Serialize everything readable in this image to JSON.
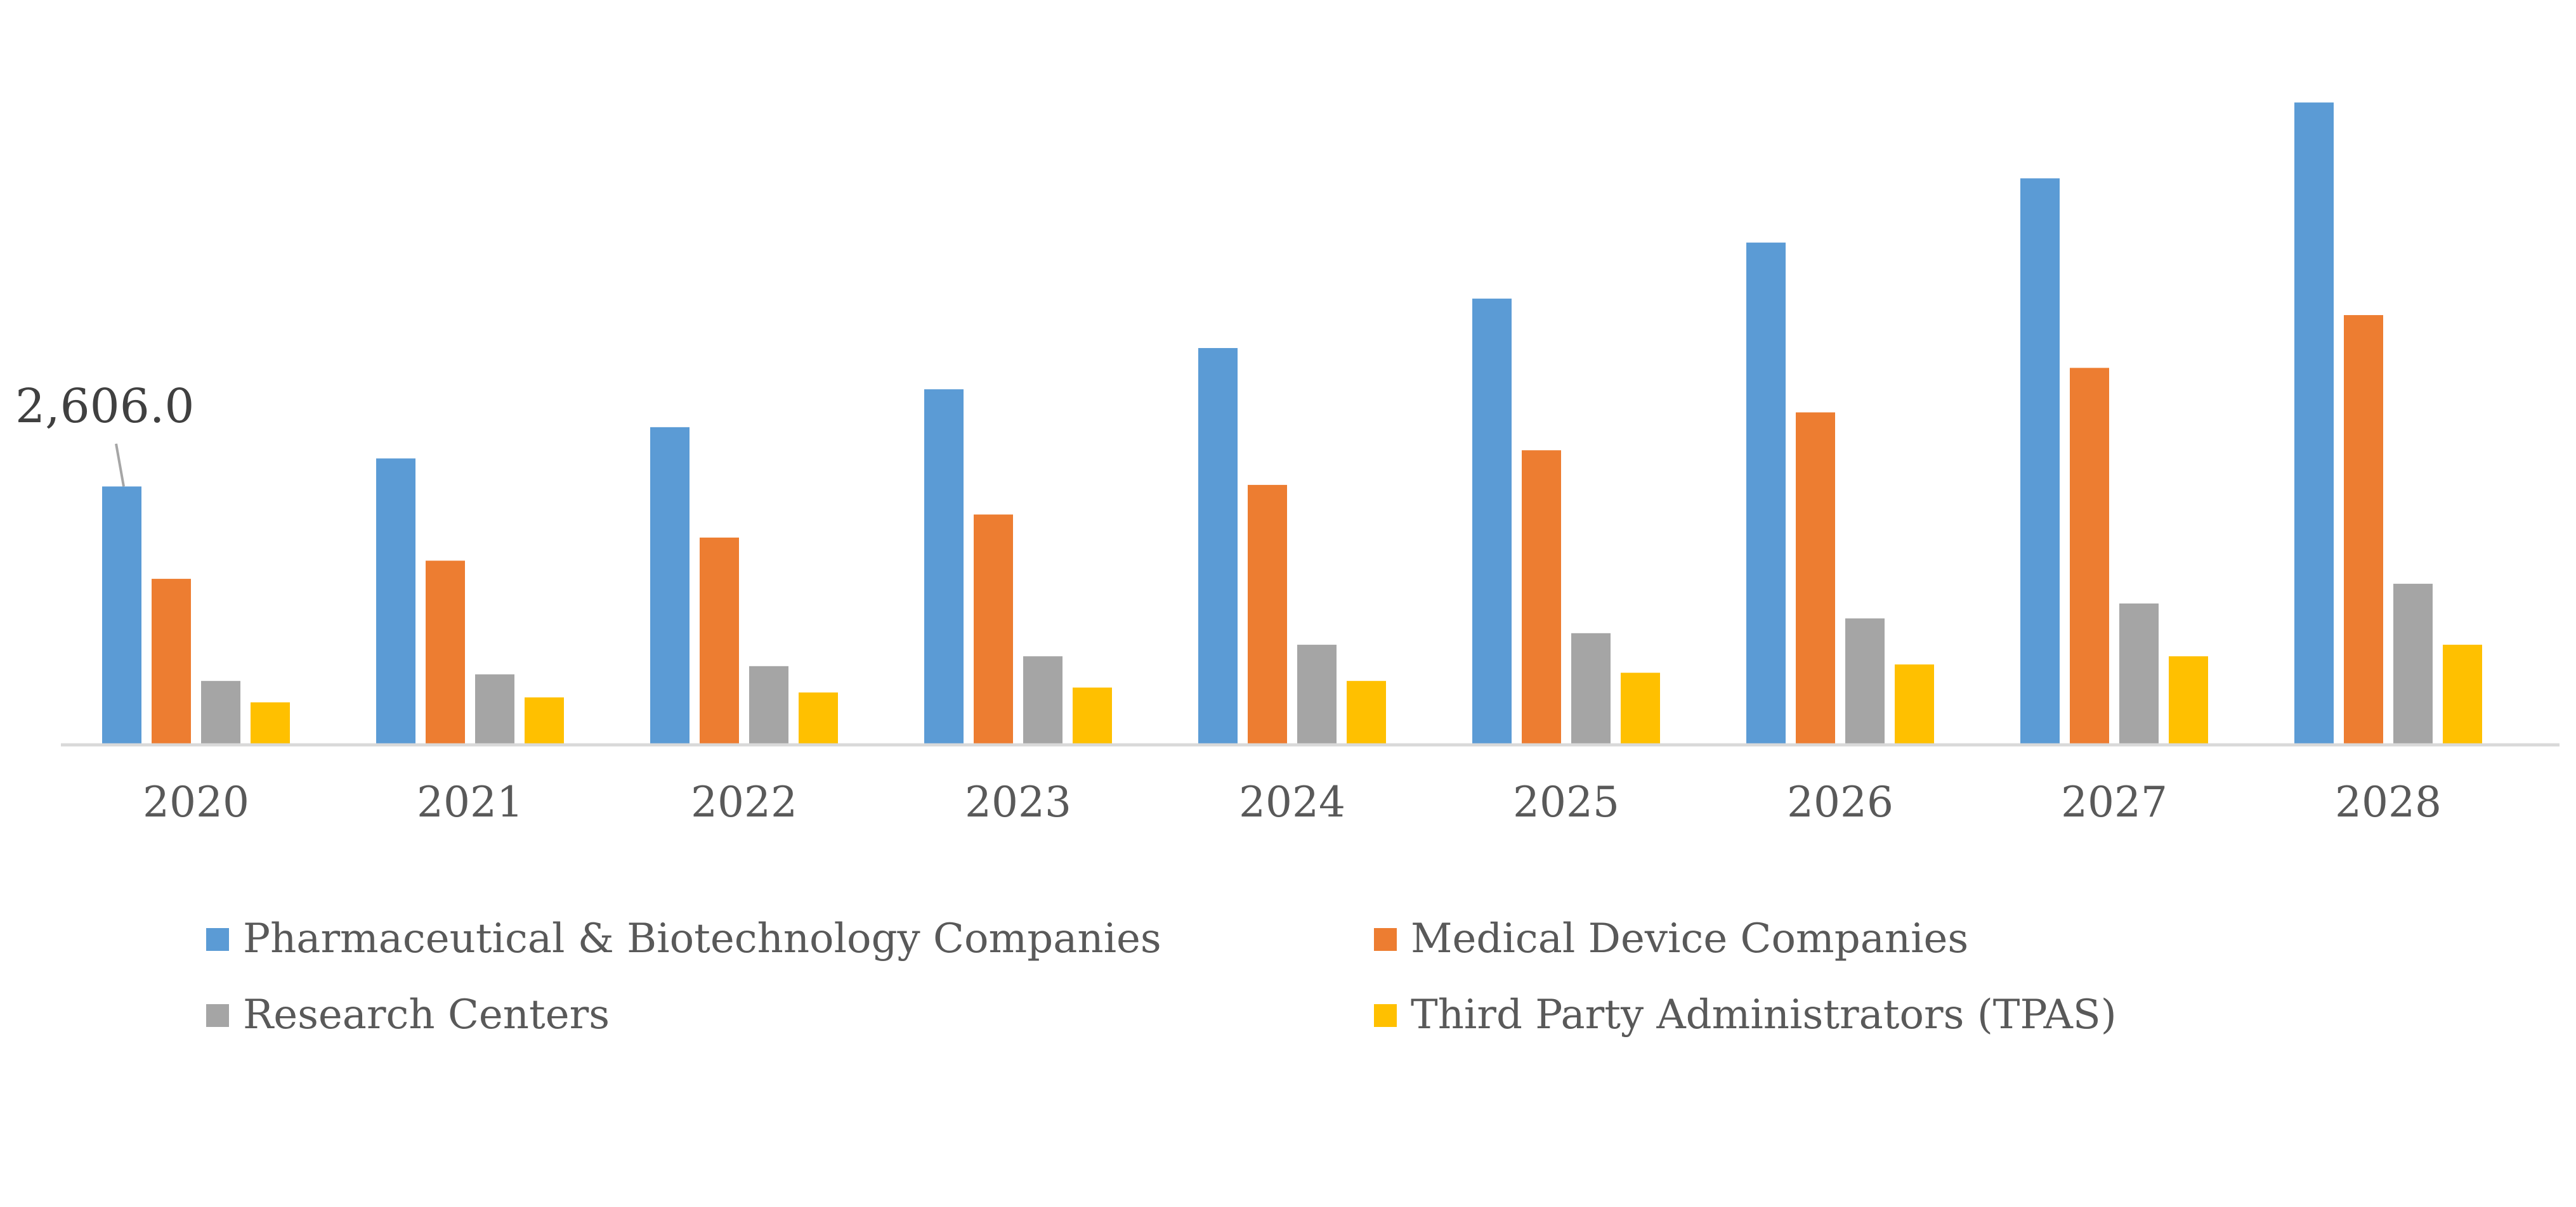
{
  "chart_data": {
    "type": "bar",
    "title": "",
    "xlabel": "",
    "ylabel": "",
    "categories": [
      "2020",
      "2021",
      "2022",
      "2023",
      "2024",
      "2025",
      "2026",
      "2027",
      "2028"
    ],
    "series": [
      {
        "name": "Pharmaceutical & Biotechnology Companies",
        "color": "#5B9BD5",
        "values": [
          2606.0,
          2890,
          3207,
          3591,
          4009,
          4510,
          5078,
          5729,
          6498
        ]
      },
      {
        "name": "Medical Device Companies",
        "color": "#ED7D31",
        "values": [
          1670,
          1854,
          2088,
          2322,
          2622,
          2973,
          3357,
          3808,
          4343
        ]
      },
      {
        "name": "Research Centers",
        "color": "#A5A5A5",
        "values": [
          635,
          702,
          785,
          885,
          1002,
          1119,
          1269,
          1420,
          1620
        ]
      },
      {
        "name": "Third Party Administrators (TPAS)",
        "color": "#FFC000",
        "values": [
          418,
          468,
          518,
          568,
          635,
          718,
          802,
          885,
          1002
        ]
      }
    ],
    "data_labels": [
      {
        "series": 0,
        "category": "2020",
        "text": "2,606.0"
      }
    ],
    "ylim": [
      0,
      6500
    ],
    "y_axis_visible": false,
    "grid": false,
    "legend_position": "bottom"
  }
}
